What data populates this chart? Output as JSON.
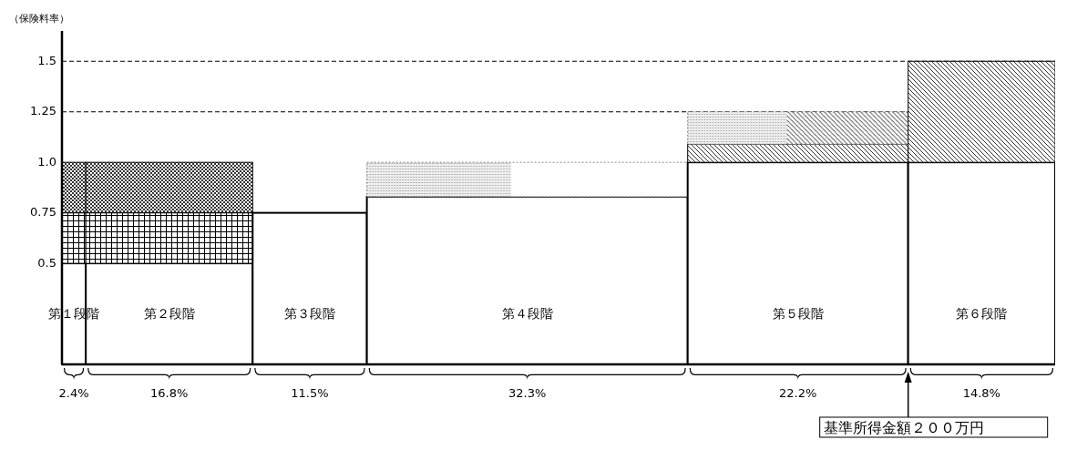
{
  "chart_data": {
    "type": "bar",
    "ylabel": "（保険料率）",
    "categories": [
      "第１段階",
      "第２段階",
      "第３段階",
      "第４段階",
      "第５段階",
      "第６段階"
    ],
    "stacked": true,
    "series": [
      {
        "color": "#ffffff",
        "values": [
          0.5,
          0.5,
          0.75,
          0.83,
          1.0,
          1.0
        ]
      },
      {
        "color": "#000000",
        "values": [
          0.25,
          0.25,
          null,
          null,
          null,
          null
        ]
      },
      {
        "color": "#000000",
        "values": [
          0.25,
          0.25,
          null,
          null,
          null,
          null
        ]
      },
      {
        "color": "#000000",
        "values": [
          null,
          null,
          null,
          null,
          0.09,
          0.5
        ]
      },
      {
        "color": "#888888",
        "values": [
          null,
          null,
          null,
          0.17,
          0.16,
          null
        ]
      }
    ],
    "ylim": [
      0,
      1.65
    ],
    "yticks": [
      0.5,
      0.75,
      {
        "value": 1.0,
        "label": "1.0"
      },
      1.25,
      1.5
    ],
    "ref_lines": [
      {
        "axis": "y",
        "value": 1.25,
        "line_style": "dashed",
        "color": "#000000"
      },
      {
        "axis": "y",
        "value": 1.5,
        "line_style": "dashed",
        "color": "#000000"
      }
    ],
    "grid": false,
    "annotations": [
      "2.4%",
      "16.8%",
      "11.5%",
      "32.3%",
      "22.2%",
      "14.8%",
      "基準所得金額２００万円"
    ]
  }
}
